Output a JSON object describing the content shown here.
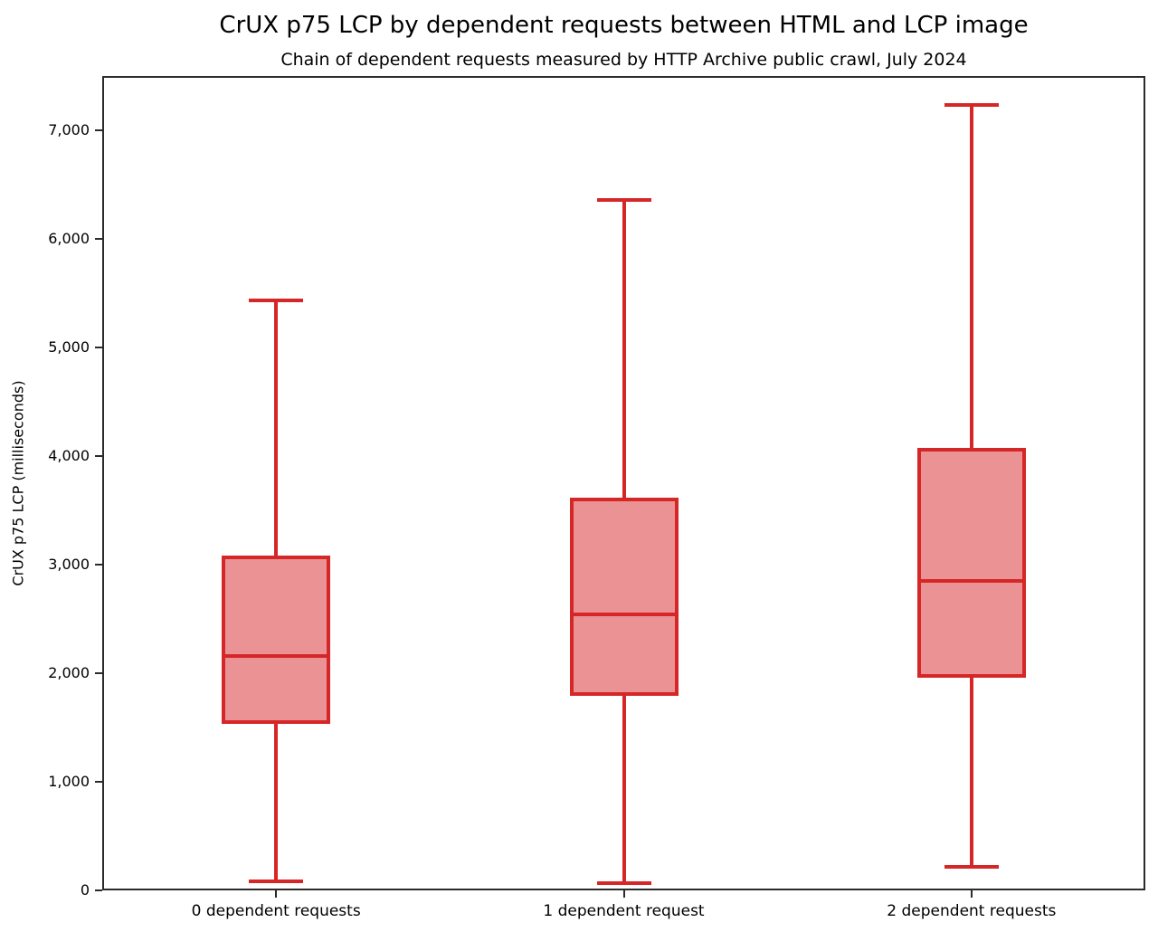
{
  "chart_data": {
    "type": "boxplot",
    "title": "CrUX p75 LCP by dependent requests between HTML and LCP image",
    "subtitle": "Chain of dependent requests measured by HTTP Archive public crawl, July 2024",
    "ylabel": "CrUX p75 LCP (milliseconds)",
    "xlabel": "",
    "ylim": [
      0,
      7500
    ],
    "yticks": [
      0,
      1000,
      2000,
      3000,
      4000,
      5000,
      6000,
      7000
    ],
    "ytick_labels": [
      "0",
      "1,000",
      "2,000",
      "3,000",
      "4,000",
      "5,000",
      "6,000",
      "7,000"
    ],
    "categories": [
      "0 dependent requests",
      "1 dependent request",
      "2 dependent requests"
    ],
    "series": [
      {
        "label": "0 dependent requests",
        "whisker_low": 80,
        "q1": 1530,
        "median": 2160,
        "q3": 3085,
        "whisker_high": 5430
      },
      {
        "label": "1 dependent request",
        "whisker_low": 65,
        "q1": 1795,
        "median": 2540,
        "q3": 3620,
        "whisker_high": 6355
      },
      {
        "label": "2 dependent requests",
        "whisker_low": 215,
        "q1": 1955,
        "median": 2850,
        "q3": 4075,
        "whisker_high": 7230
      }
    ],
    "grid": false,
    "legend": "none",
    "colors": {
      "box_edge": "#d62728",
      "box_fill": "#eb9394",
      "spine": "#2b2b2b",
      "text": "#000000",
      "background": "#ffffff"
    }
  }
}
